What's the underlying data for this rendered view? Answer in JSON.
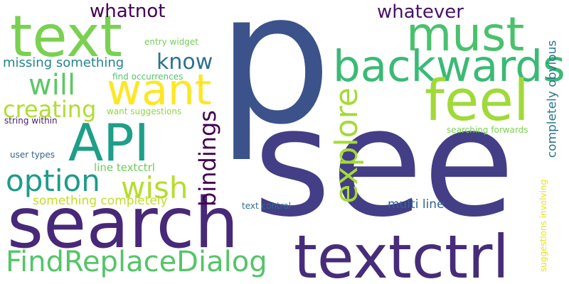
{
  "words": [
    {
      "text": "p",
      "color": "#3b528b"
    },
    {
      "text": "see",
      "color": "#433e85"
    },
    {
      "text": "search",
      "color": "#482878"
    },
    {
      "text": "textctrl",
      "color": "#472c7a"
    },
    {
      "text": "text",
      "color": "#7ad151"
    },
    {
      "text": "must",
      "color": "#4ac16d"
    },
    {
      "text": "backwards",
      "color": "#3aba76"
    },
    {
      "text": "feel",
      "color": "#a0da39"
    },
    {
      "text": "want",
      "color": "#fde725"
    },
    {
      "text": "API",
      "color": "#1f9e89"
    },
    {
      "text": "FindReplaceDialog",
      "color": "#54c568"
    },
    {
      "text": "explore",
      "color": "#a5db36"
    },
    {
      "text": "option",
      "color": "#1e9c89"
    },
    {
      "text": "wish",
      "color": "#b5de2b"
    },
    {
      "text": "will",
      "color": "#5cc863"
    },
    {
      "text": "creating",
      "color": "#b0dd2f"
    },
    {
      "text": "bindings",
      "color": "#440154"
    },
    {
      "text": "know",
      "color": "#2c728e"
    },
    {
      "text": "whatnot",
      "color": "#440154"
    },
    {
      "text": "whatever",
      "color": "#471365"
    },
    {
      "text": "missing something",
      "color": "#25848e"
    },
    {
      "text": "something completely",
      "color": "#c0df25"
    },
    {
      "text": "completely obvious",
      "color": "#2a768e"
    },
    {
      "text": "multi line",
      "color": "#31668e"
    },
    {
      "text": "line textctrl",
      "color": "#6ccd5a"
    },
    {
      "text": "entry widget",
      "color": "#73d056"
    },
    {
      "text": "find occurrences",
      "color": "#52c569"
    },
    {
      "text": "want suggestions",
      "color": "#8fd744"
    },
    {
      "text": "string within",
      "color": "#482173"
    },
    {
      "text": "user types",
      "color": "#33638d"
    },
    {
      "text": "searching forwards",
      "color": "#7ad151"
    },
    {
      "text": "suggestions involving",
      "color": "#e5e419"
    },
    {
      "text": "text control",
      "color": "#2d708e"
    }
  ]
}
